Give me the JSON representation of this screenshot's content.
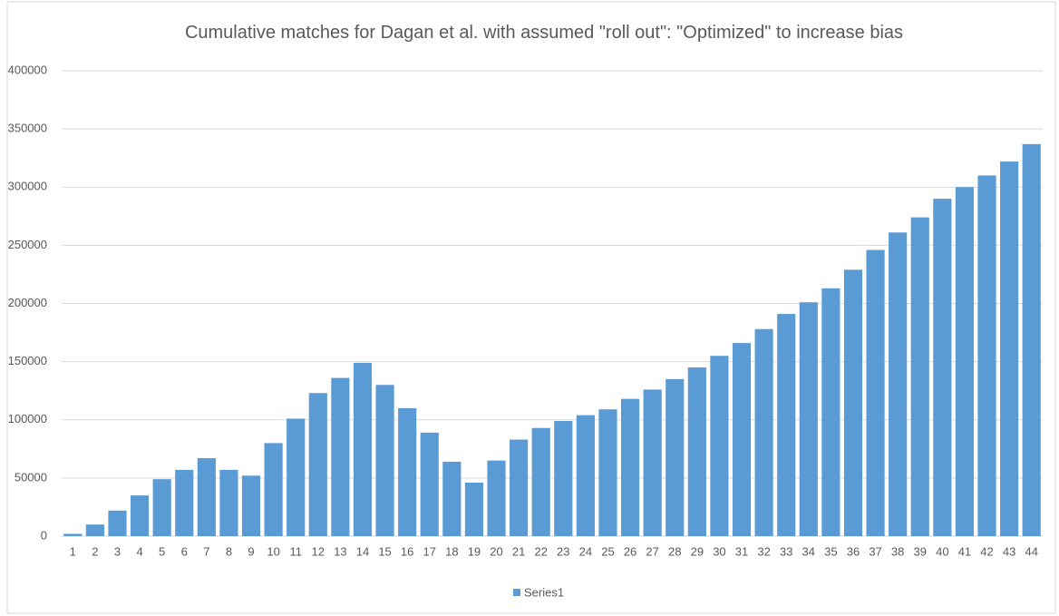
{
  "chart_data": {
    "type": "bar",
    "title": "Cumulative matches for Dagan et al. with assumed \"roll out\": \"Optimized\" to increase bias",
    "categories": [
      1,
      2,
      3,
      4,
      5,
      6,
      7,
      8,
      9,
      10,
      11,
      12,
      13,
      14,
      15,
      16,
      17,
      18,
      19,
      20,
      21,
      22,
      23,
      24,
      25,
      26,
      27,
      28,
      29,
      30,
      31,
      32,
      33,
      34,
      35,
      36,
      37,
      38,
      39,
      40,
      41,
      42,
      43,
      44
    ],
    "series": [
      {
        "name": "Series1",
        "color": "#5b9bd5",
        "values": [
          2000,
          10000,
          22000,
          35000,
          49000,
          57000,
          67000,
          57000,
          52000,
          80000,
          101000,
          123000,
          136000,
          149000,
          130000,
          110000,
          89000,
          64000,
          46000,
          65000,
          83000,
          93000,
          99000,
          104000,
          109000,
          118000,
          126000,
          135000,
          145000,
          155000,
          166000,
          178000,
          191000,
          201000,
          213000,
          229000,
          246000,
          261000,
          274000,
          290000,
          300000,
          310000,
          322000,
          337000
        ]
      }
    ],
    "ylim": [
      0,
      400000
    ],
    "yticks": [
      0,
      50000,
      100000,
      150000,
      200000,
      250000,
      300000,
      350000,
      400000
    ],
    "grid": true,
    "legend": "bottom"
  }
}
